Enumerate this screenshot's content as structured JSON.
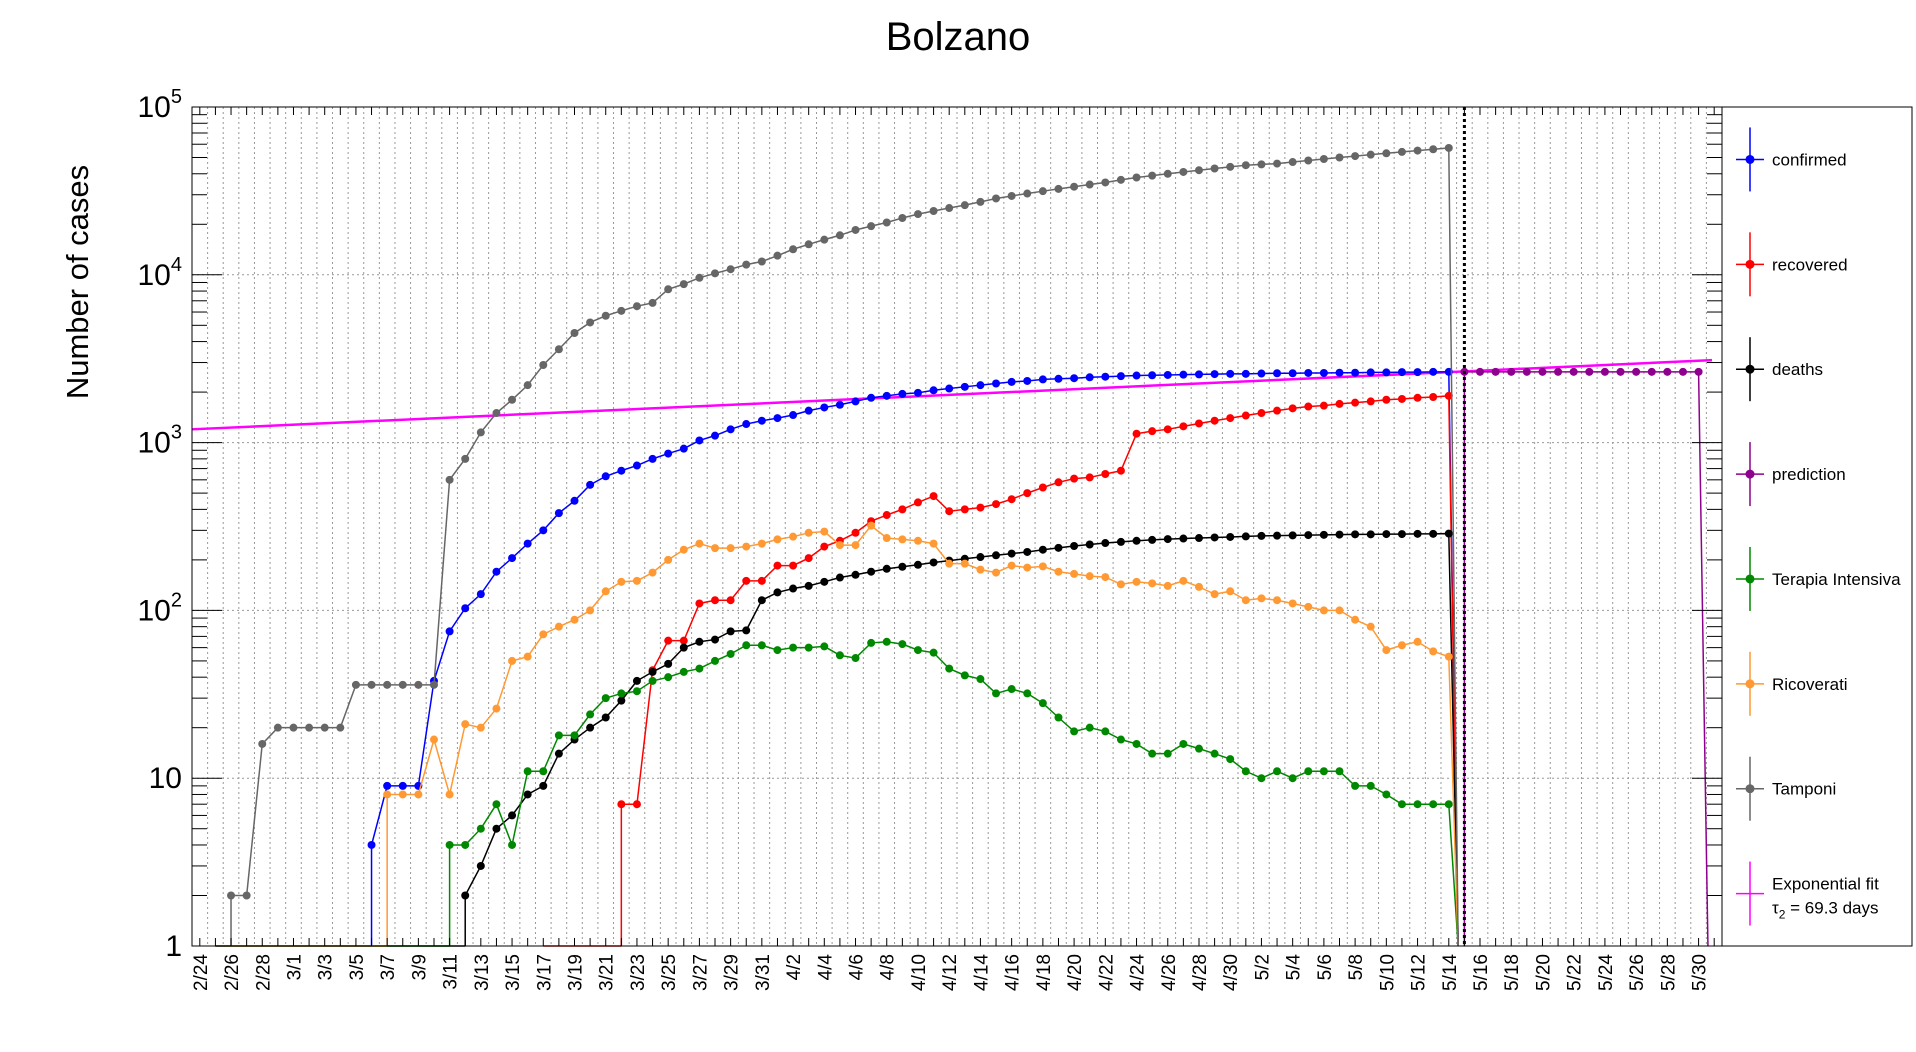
{
  "chart_data": {
    "type": "line",
    "title": "Bolzano",
    "ylabel": "Number of cases",
    "xlabel": "",
    "yscale": "log",
    "ylim": [
      1,
      100000
    ],
    "y_ticks": [
      {
        "value": 1,
        "label": "1"
      },
      {
        "value": 10,
        "label": "10"
      },
      {
        "value": 100,
        "base": "10",
        "exp": "2"
      },
      {
        "value": 1000,
        "base": "10",
        "exp": "3"
      },
      {
        "value": 10000,
        "base": "10",
        "exp": "4"
      },
      {
        "value": 100000,
        "base": "10",
        "exp": "5"
      }
    ],
    "x_start": "2/24",
    "x_tick_labels": [
      "2/24",
      "2/26",
      "2/28",
      "3/1",
      "3/3",
      "3/5",
      "3/7",
      "3/9",
      "3/11",
      "3/13",
      "3/15",
      "3/17",
      "3/19",
      "3/21",
      "3/23",
      "3/25",
      "3/27",
      "3/29",
      "3/31",
      "4/2",
      "4/4",
      "4/6",
      "4/8",
      "4/10",
      "4/12",
      "4/14",
      "4/16",
      "4/18",
      "4/20",
      "4/22",
      "4/24",
      "4/26",
      "4/28",
      "4/30",
      "5/2",
      "5/4",
      "5/6",
      "5/8",
      "5/10",
      "5/12",
      "5/14",
      "5/16",
      "5/18",
      "5/20",
      "5/22",
      "5/24",
      "5/26",
      "5/28",
      "5/30"
    ],
    "grid": true,
    "legend_position": "right",
    "vertical_line": "5/15",
    "series": [
      {
        "name": "confirmed",
        "color": "#0000ff",
        "x": [
          "3/6",
          "3/7",
          "3/8",
          "3/9",
          "3/10",
          "3/11",
          "3/12",
          "3/13",
          "3/14",
          "3/15",
          "3/16",
          "3/17",
          "3/18",
          "3/19",
          "3/20",
          "3/21",
          "3/22",
          "3/23",
          "3/24",
          "3/25",
          "3/26",
          "3/27",
          "3/28",
          "3/29",
          "3/30",
          "3/31",
          "4/1",
          "4/2",
          "4/3",
          "4/4",
          "4/5",
          "4/6",
          "4/7",
          "4/8",
          "4/9",
          "4/10",
          "4/11",
          "4/12",
          "4/13",
          "4/14",
          "4/15",
          "4/16",
          "4/17",
          "4/18",
          "4/19",
          "4/20",
          "4/21",
          "4/22",
          "4/23",
          "4/24",
          "4/25",
          "4/26",
          "4/27",
          "4/28",
          "4/29",
          "4/30",
          "5/1",
          "5/2",
          "5/3",
          "5/4",
          "5/5",
          "5/6",
          "5/7",
          "5/8",
          "5/9",
          "5/10",
          "5/11",
          "5/12",
          "5/13",
          "5/14"
        ],
        "values": [
          4,
          9,
          9,
          9,
          38,
          75,
          103,
          125,
          170,
          205,
          250,
          300,
          380,
          450,
          560,
          630,
          680,
          730,
          800,
          860,
          920,
          1030,
          1100,
          1200,
          1290,
          1350,
          1400,
          1460,
          1550,
          1620,
          1680,
          1760,
          1850,
          1900,
          1950,
          1980,
          2050,
          2100,
          2150,
          2200,
          2250,
          2300,
          2330,
          2380,
          2400,
          2420,
          2450,
          2470,
          2490,
          2510,
          2520,
          2530,
          2540,
          2550,
          2560,
          2570,
          2570,
          2580,
          2590,
          2590,
          2600,
          2600,
          2610,
          2610,
          2620,
          2620,
          2630,
          2630,
          2640,
          2640
        ]
      },
      {
        "name": "recovered",
        "color": "#ff0000",
        "x": [
          "3/22",
          "3/23",
          "3/24",
          "3/25",
          "3/26",
          "3/27",
          "3/28",
          "3/29",
          "3/30",
          "3/31",
          "4/1",
          "4/2",
          "4/3",
          "4/4",
          "4/5",
          "4/6",
          "4/7",
          "4/8",
          "4/9",
          "4/10",
          "4/11",
          "4/12",
          "4/13",
          "4/14",
          "4/15",
          "4/16",
          "4/17",
          "4/18",
          "4/19",
          "4/20",
          "4/21",
          "4/22",
          "4/23",
          "4/24",
          "4/25",
          "4/26",
          "4/27",
          "4/28",
          "4/29",
          "4/30",
          "5/1",
          "5/2",
          "5/3",
          "5/4",
          "5/5",
          "5/6",
          "5/7",
          "5/8",
          "5/9",
          "5/10",
          "5/11",
          "5/12",
          "5/13",
          "5/14"
        ],
        "values": [
          7,
          7,
          44,
          66,
          66,
          110,
          115,
          115,
          150,
          150,
          185,
          185,
          205,
          240,
          260,
          290,
          340,
          370,
          400,
          440,
          480,
          390,
          400,
          410,
          430,
          460,
          500,
          540,
          580,
          610,
          620,
          650,
          680,
          1130,
          1170,
          1200,
          1250,
          1300,
          1350,
          1400,
          1450,
          1500,
          1550,
          1600,
          1640,
          1660,
          1700,
          1730,
          1760,
          1800,
          1820,
          1850,
          1870,
          1900
        ]
      },
      {
        "name": "deaths",
        "color": "#000000",
        "x": [
          "3/12",
          "3/13",
          "3/14",
          "3/15",
          "3/16",
          "3/17",
          "3/18",
          "3/19",
          "3/20",
          "3/21",
          "3/22",
          "3/23",
          "3/24",
          "3/25",
          "3/26",
          "3/27",
          "3/28",
          "3/29",
          "3/30",
          "3/31",
          "4/1",
          "4/2",
          "4/3",
          "4/4",
          "4/5",
          "4/6",
          "4/7",
          "4/8",
          "4/9",
          "4/10",
          "4/11",
          "4/12",
          "4/13",
          "4/14",
          "4/15",
          "4/16",
          "4/17",
          "4/18",
          "4/19",
          "4/20",
          "4/21",
          "4/22",
          "4/23",
          "4/24",
          "4/25",
          "4/26",
          "4/27",
          "4/28",
          "4/29",
          "4/30",
          "5/1",
          "5/2",
          "5/3",
          "5/4",
          "5/5",
          "5/6",
          "5/7",
          "5/8",
          "5/9",
          "5/10",
          "5/11",
          "5/12",
          "5/13",
          "5/14"
        ],
        "values": [
          2,
          3,
          5,
          6,
          8,
          9,
          14,
          17,
          20,
          23,
          29,
          38,
          43,
          48,
          60,
          65,
          67,
          75,
          76,
          115,
          128,
          135,
          140,
          148,
          157,
          163,
          170,
          177,
          182,
          187,
          193,
          198,
          203,
          208,
          213,
          218,
          223,
          230,
          236,
          242,
          247,
          252,
          256,
          260,
          263,
          266,
          268,
          270,
          272,
          274,
          276,
          278,
          279,
          280,
          281,
          282,
          283,
          284,
          284,
          285,
          285,
          286,
          286,
          287
        ]
      },
      {
        "name": "prediction",
        "color": "#8e008e",
        "x": [
          "5/15",
          "5/16",
          "5/17",
          "5/18",
          "5/19",
          "5/20",
          "5/21",
          "5/22",
          "5/23",
          "5/24",
          "5/25",
          "5/26",
          "5/27",
          "5/28",
          "5/29",
          "5/30"
        ],
        "values": [
          2640,
          2640,
          2640,
          2640,
          2640,
          2640,
          2640,
          2640,
          2640,
          2640,
          2640,
          2640,
          2640,
          2640,
          2640,
          2640
        ]
      },
      {
        "name": "Terapia Intensiva",
        "color": "#008800",
        "x": [
          "3/11",
          "3/12",
          "3/13",
          "3/14",
          "3/15",
          "3/16",
          "3/17",
          "3/18",
          "3/19",
          "3/20",
          "3/21",
          "3/22",
          "3/23",
          "3/24",
          "3/25",
          "3/26",
          "3/27",
          "3/28",
          "3/29",
          "3/30",
          "3/31",
          "4/1",
          "4/2",
          "4/3",
          "4/4",
          "4/5",
          "4/6",
          "4/7",
          "4/8",
          "4/9",
          "4/10",
          "4/11",
          "4/12",
          "4/13",
          "4/14",
          "4/15",
          "4/16",
          "4/17",
          "4/18",
          "4/19",
          "4/20",
          "4/21",
          "4/22",
          "4/23",
          "4/24",
          "4/25",
          "4/26",
          "4/27",
          "4/28",
          "4/29",
          "4/30",
          "5/1",
          "5/2",
          "5/3",
          "5/4",
          "5/5",
          "5/6",
          "5/7",
          "5/8",
          "5/9",
          "5/10",
          "5/11",
          "5/12",
          "5/13",
          "5/14"
        ],
        "values": [
          4,
          4,
          5,
          7,
          4,
          11,
          11,
          18,
          18,
          24,
          30,
          32,
          33,
          38,
          40,
          43,
          45,
          50,
          55,
          62,
          62,
          58,
          60,
          60,
          61,
          54,
          52,
          64,
          65,
          63,
          58,
          56,
          45,
          41,
          39,
          32,
          34,
          32,
          28,
          23,
          19,
          20,
          19,
          17,
          16,
          14,
          14,
          16,
          15,
          14,
          13,
          11,
          10,
          11,
          10,
          11,
          11,
          11,
          9,
          9,
          8,
          7,
          7,
          7,
          7
        ]
      },
      {
        "name": "Ricoverati",
        "color": "#ff9933",
        "x": [
          "3/7",
          "3/8",
          "3/9",
          "3/10",
          "3/11",
          "3/12",
          "3/13",
          "3/14",
          "3/15",
          "3/16",
          "3/17",
          "3/18",
          "3/19",
          "3/20",
          "3/21",
          "3/22",
          "3/23",
          "3/24",
          "3/25",
          "3/26",
          "3/27",
          "3/28",
          "3/29",
          "3/30",
          "3/31",
          "4/1",
          "4/2",
          "4/3",
          "4/4",
          "4/5",
          "4/6",
          "4/7",
          "4/8",
          "4/9",
          "4/10",
          "4/11",
          "4/12",
          "4/13",
          "4/14",
          "4/15",
          "4/16",
          "4/17",
          "4/18",
          "4/19",
          "4/20",
          "4/21",
          "4/22",
          "4/23",
          "4/24",
          "4/25",
          "4/26",
          "4/27",
          "4/28",
          "4/29",
          "4/30",
          "5/1",
          "5/2",
          "5/3",
          "5/4",
          "5/5",
          "5/6",
          "5/7",
          "5/8",
          "5/9",
          "5/10",
          "5/11",
          "5/12",
          "5/13",
          "5/14"
        ],
        "values": [
          8,
          8,
          8,
          17,
          8,
          21,
          20,
          26,
          50,
          53,
          72,
          80,
          88,
          100,
          130,
          148,
          150,
          168,
          200,
          230,
          250,
          235,
          235,
          240,
          250,
          265,
          275,
          290,
          295,
          245,
          245,
          320,
          270,
          265,
          260,
          250,
          190,
          190,
          175,
          168,
          185,
          180,
          183,
          170,
          165,
          160,
          158,
          143,
          148,
          145,
          140,
          150,
          138,
          125,
          130,
          115,
          118,
          115,
          110,
          105,
          100,
          100,
          88,
          80,
          58,
          62,
          65,
          57,
          53
        ]
      },
      {
        "name": "Tamponi",
        "color": "#666666",
        "x": [
          "2/26",
          "2/27",
          "2/28",
          "2/29",
          "3/1",
          "3/2",
          "3/3",
          "3/4",
          "3/5",
          "3/6",
          "3/7",
          "3/8",
          "3/9",
          "3/10",
          "3/11",
          "3/12",
          "3/13",
          "3/14",
          "3/15",
          "3/16",
          "3/17",
          "3/18",
          "3/19",
          "3/20",
          "3/21",
          "3/22",
          "3/23",
          "3/24",
          "3/25",
          "3/26",
          "3/27",
          "3/28",
          "3/29",
          "3/30",
          "3/31",
          "4/1",
          "4/2",
          "4/3",
          "4/4",
          "4/5",
          "4/6",
          "4/7",
          "4/8",
          "4/9",
          "4/10",
          "4/11",
          "4/12",
          "4/13",
          "4/14",
          "4/15",
          "4/16",
          "4/17",
          "4/18",
          "4/19",
          "4/20",
          "4/21",
          "4/22",
          "4/23",
          "4/24",
          "4/25",
          "4/26",
          "4/27",
          "4/28",
          "4/29",
          "4/30",
          "5/1",
          "5/2",
          "5/3",
          "5/4",
          "5/5",
          "5/6",
          "5/7",
          "5/8",
          "5/9",
          "5/10",
          "5/11",
          "5/12",
          "5/13",
          "5/14"
        ],
        "values": [
          2,
          2,
          16,
          20,
          20,
          20,
          20,
          20,
          36,
          36,
          36,
          36,
          36,
          36,
          600,
          800,
          1150,
          1500,
          1800,
          2200,
          2900,
          3600,
          4500,
          5200,
          5700,
          6100,
          6500,
          6800,
          8200,
          8800,
          9600,
          10200,
          10800,
          11500,
          12000,
          13000,
          14200,
          15200,
          16200,
          17200,
          18500,
          19500,
          20500,
          21800,
          23000,
          24000,
          25000,
          26000,
          27200,
          28500,
          29500,
          30500,
          31500,
          32500,
          33500,
          34500,
          35500,
          36800,
          38000,
          39000,
          40000,
          41000,
          42000,
          43000,
          44000,
          45000,
          45500,
          46000,
          47000,
          48000,
          49000,
          50000,
          51000,
          52000,
          53000,
          54000,
          55000,
          56000,
          57000
        ]
      }
    ],
    "fit": {
      "name_line1": "Exponential fit",
      "name_line2_sym": "τ",
      "name_line2_sub": "2",
      "name_line2_rest": " = 69.3 days",
      "color": "#ff00ff",
      "x_from": "2/24",
      "x_to": "5/31",
      "y_at_start": 1200,
      "y_at_end": 3100
    }
  }
}
